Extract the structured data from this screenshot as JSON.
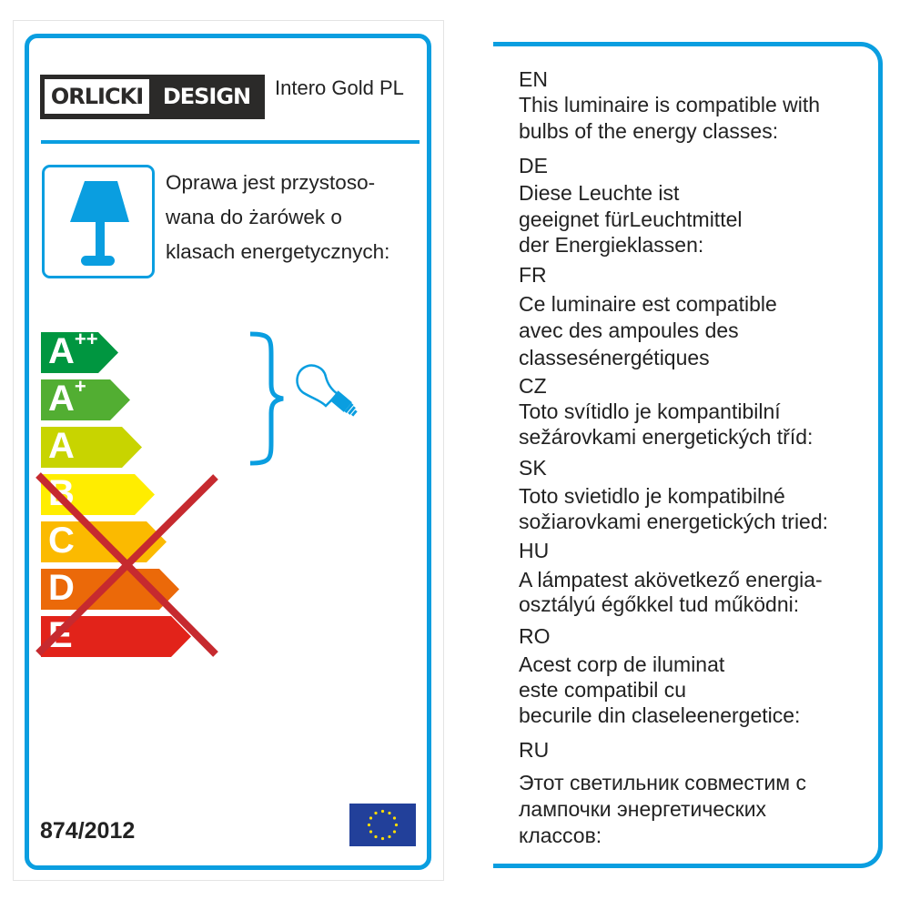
{
  "brand": {
    "logo_left": "ORLICKI",
    "logo_right": "DESIGN"
  },
  "model": "Intero Gold PL",
  "polish_text": [
    "Oprawa jest przystoso-",
    "wana do żarówek o",
    "klasach energetycznych:"
  ],
  "energy_classes": [
    {
      "letter": "A",
      "sup": "++",
      "color": "#009640",
      "allowed": true
    },
    {
      "letter": "A",
      "sup": "+",
      "color": "#52ae32",
      "allowed": true
    },
    {
      "letter": "A",
      "sup": "",
      "color": "#c8d400",
      "allowed": true
    },
    {
      "letter": "B",
      "sup": "",
      "color": "#ffed00",
      "allowed": false
    },
    {
      "letter": "C",
      "sup": "",
      "color": "#fbba00",
      "allowed": false
    },
    {
      "letter": "D",
      "sup": "",
      "color": "#eb6909",
      "allowed": false
    },
    {
      "letter": "E",
      "sup": "",
      "color": "#e2231a",
      "allowed": false
    }
  ],
  "regulation": "874/2012",
  "colors": {
    "accent": "#0a9ee0",
    "cross": "#c62a2f",
    "eu_blue": "#22409a",
    "eu_star": "#ffdd00"
  },
  "icons": [
    "table-lamp-icon",
    "light-bulb-icon",
    "brace-icon",
    "eu-flag-icon"
  ],
  "translations": [
    {
      "lang": "EN",
      "lines": [
        "This luminaire is compatible with",
        "bulbs of the energy classes:"
      ]
    },
    {
      "lang": "DE",
      "lines": [
        "Diese Leuchte ist",
        "geeignet fürLeuchtmittel",
        "der Energieklassen:"
      ]
    },
    {
      "lang": "FR",
      "lines": [
        "Ce luminaire est compatible",
        "avec des ampoules des",
        "classesénergétiques"
      ]
    },
    {
      "lang": "CZ",
      "lines": [
        "Toto svítidlo je kompantibilní",
        "sežárovkami energetických tříd:"
      ]
    },
    {
      "lang": "SK",
      "lines": [
        "Toto svietidlo je kompatibilné",
        "sožiarovkami energetických tried:"
      ]
    },
    {
      "lang": "HU",
      "lines": [
        "A lámpatest akövetkező energia-",
        "osztályú égőkkel tud működni:"
      ]
    },
    {
      "lang": "RO",
      "lines": [
        "Acest corp de iluminat",
        "este compatibil cu",
        "becurile din claseleenergetice:"
      ]
    },
    {
      "lang": "RU",
      "lines": [
        "Этот светильник совместим с",
        "лампочки энергетических",
        "классов:"
      ]
    }
  ]
}
